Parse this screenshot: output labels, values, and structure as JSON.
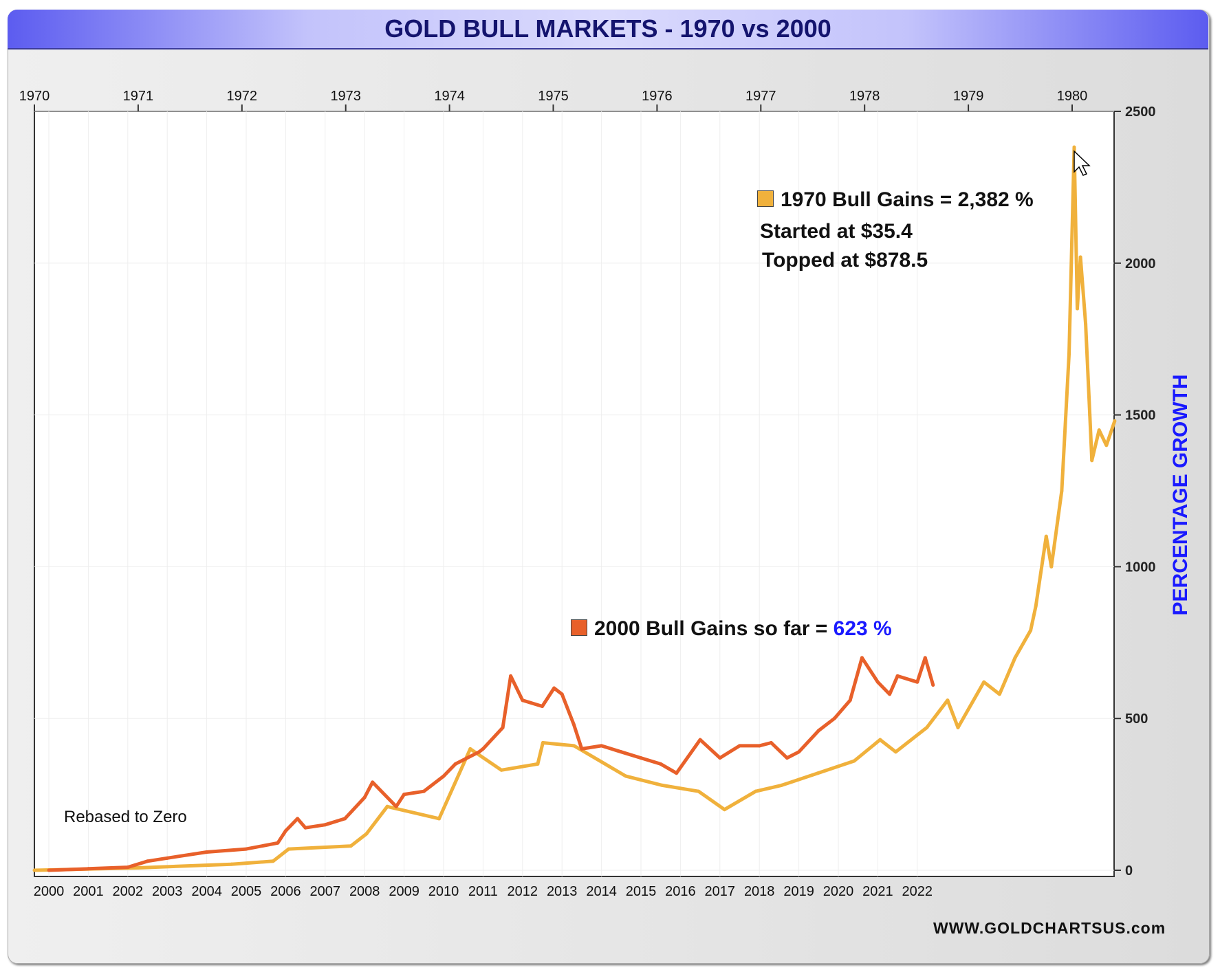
{
  "chart_data": {
    "type": "line",
    "title": "GOLD BULL MARKETS - 1970 vs 2000",
    "ylabel": "PERCENTAGE GROWTH",
    "ylim": [
      0,
      2500
    ],
    "yticks": [
      "0",
      "500",
      "1000",
      "1500",
      "2000",
      "2500"
    ],
    "top_xaxis_ticks": [
      "1970",
      "1971",
      "1972",
      "1973",
      "1974",
      "1975",
      "1976",
      "1977",
      "1978",
      "1979",
      "1980"
    ],
    "bottom_xaxis_ticks": [
      "2000",
      "2001",
      "2002",
      "2003",
      "2004",
      "2005",
      "2006",
      "2007",
      "2008",
      "2009",
      "2010",
      "2011",
      "2012",
      "2013",
      "2014",
      "2015",
      "2016",
      "2017",
      "2018",
      "2019",
      "2020",
      "2021",
      "2022"
    ],
    "grid": true,
    "series": [
      {
        "name": "1970 Bull Gains",
        "axis": "top",
        "color": "#f0b13c",
        "x": [
          1970,
          1971,
          1971.9,
          1972.3,
          1972.45,
          1973.05,
          1973.2,
          1973.4,
          1973.9,
          1974.2,
          1974.5,
          1974.85,
          1974.9,
          1975.2,
          1975.7,
          1976.05,
          1976.4,
          1976.65,
          1976.95,
          1977.2,
          1977.55,
          1977.9,
          1978.15,
          1978.3,
          1978.6,
          1978.8,
          1978.9,
          1979.15,
          1979.3,
          1979.45,
          1979.6,
          1979.65,
          1979.75,
          1979.8,
          1979.9,
          1979.97,
          1980.02,
          1980.05,
          1980.08,
          1980.13,
          1980.17,
          1980.19,
          1980.26,
          1980.33,
          1980.41
        ],
        "y": [
          0,
          8,
          20,
          30,
          70,
          80,
          120,
          210,
          170,
          400,
          330,
          350,
          420,
          410,
          310,
          280,
          260,
          200,
          260,
          280,
          320,
          360,
          430,
          390,
          470,
          560,
          470,
          620,
          580,
          700,
          790,
          870,
          1100,
          1000,
          1250,
          1700,
          2382,
          1850,
          2020,
          1800,
          1500,
          1350,
          1450,
          1400,
          1480
        ]
      },
      {
        "name": "2000 Bull Gains so far",
        "axis": "bottom",
        "color": "#e8602a",
        "x": [
          2000,
          2001,
          2002,
          2002.5,
          2003,
          2004,
          2005,
          2005.8,
          2006,
          2006.3,
          2006.5,
          2007,
          2007.5,
          2008,
          2008.2,
          2008.8,
          2009,
          2009.5,
          2010,
          2010.3,
          2010.9,
          2011,
          2011.5,
          2011.7,
          2012,
          2012.5,
          2012.8,
          2013,
          2013.3,
          2013.5,
          2014,
          2014.5,
          2015,
          2015.5,
          2015.9,
          2016.5,
          2017,
          2017.5,
          2018,
          2018.3,
          2018.7,
          2019,
          2019.5,
          2019.9,
          2020.3,
          2020.6,
          2021,
          2021.3,
          2021.5,
          2022,
          2022.2,
          2022.4
        ],
        "y": [
          0,
          5,
          10,
          30,
          40,
          60,
          70,
          90,
          130,
          170,
          140,
          150,
          170,
          240,
          290,
          210,
          250,
          260,
          310,
          350,
          390,
          400,
          470,
          640,
          560,
          540,
          600,
          580,
          480,
          400,
          410,
          390,
          370,
          350,
          320,
          430,
          370,
          410,
          410,
          420,
          370,
          390,
          460,
          500,
          560,
          700,
          620,
          580,
          640,
          620,
          700,
          610
        ]
      }
    ],
    "annotations": {
      "gains_1970": "1970 Bull Gains = 2,382 %",
      "started": "Started at $35.4",
      "topped": "Topped at $878.5",
      "gains_2000_label": "2000 Bull Gains so far = ",
      "gains_2000_value": "623 %",
      "rebased": "Rebased to Zero"
    },
    "source": "WWW.GOLDCHARTSUS.com"
  }
}
